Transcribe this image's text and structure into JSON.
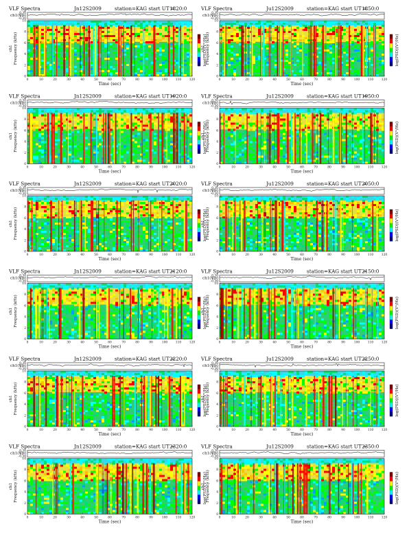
{
  "figure": {
    "columns": 2,
    "rows": 6,
    "header_prefix": "VLF  Spectra",
    "station_text": "station=KAG  start  UT =",
    "dates": {
      "left": "Jn12S2009",
      "right": "Ju12S2009"
    },
    "labels": {
      "ch1_volts": "ch1(V)",
      "ylabel_top": "ch1",
      "ylabel_bottom": "Frequency  (kHz)",
      "xlabel": "Time  (sec)",
      "colorbar": "log(PSD)(V²/Hz)"
    }
  },
  "chart_data": [
    {
      "type": "heatmap",
      "panel": 1,
      "title": "VLF  Spectra",
      "date": "Jn12S2009",
      "start_ut": "1820:0",
      "ch1": {
        "ylim": [
          -0.3,
          0.3
        ],
        "yticks": [
          "0.30",
          "0.00",
          "-0.30"
        ]
      },
      "x": {
        "label": "Time  (sec)",
        "range": [
          0,
          120
        ],
        "ticks": [
          0,
          10,
          20,
          30,
          40,
          50,
          60,
          70,
          80,
          90,
          100,
          110,
          120
        ]
      },
      "y": {
        "label": "Frequency  (kHz)",
        "range": [
          0,
          10
        ],
        "ticks": [
          0,
          2,
          4,
          6,
          8,
          10
        ]
      },
      "colorbar": {
        "label": "log(PSD)(V²/Hz)",
        "colors": [
          "#000080",
          "#0000ff",
          "#00ffff",
          "#00ff00",
          "#ffff00",
          "#ff0000",
          "#800000"
        ]
      }
    },
    {
      "type": "heatmap",
      "panel": 2,
      "title": "VLF  Spectra",
      "date": "Ju12S2009",
      "start_ut": "1850:0",
      "ch1": {
        "ylim": [
          -0.3,
          0.3
        ],
        "yticks": [
          "0.30",
          "0.00",
          "-0.30"
        ]
      },
      "x": {
        "label": "Time  (sec)",
        "range": [
          0,
          120
        ],
        "ticks": [
          0,
          10,
          20,
          30,
          40,
          50,
          60,
          70,
          80,
          90,
          100,
          110,
          120
        ]
      },
      "y": {
        "label": "Frequency  (kHz)",
        "range": [
          0,
          10
        ],
        "ticks": [
          0,
          2,
          4,
          6,
          8,
          10
        ]
      },
      "colorbar": {
        "label": "log(PSD)(V²/Hz)",
        "colors": [
          "#000080",
          "#0000ff",
          "#00ffff",
          "#00ff00",
          "#ffff00",
          "#ff0000",
          "#800000"
        ]
      }
    },
    {
      "type": "heatmap",
      "panel": 3,
      "title": "VLF  Spectra",
      "date": "Jn12S2009",
      "start_ut": "1920:0",
      "ch1": {
        "ylim": [
          -0.3,
          0.3
        ],
        "yticks": [
          "0.30",
          "0.00",
          "-0.30"
        ]
      },
      "x": {
        "label": "Time  (sec)",
        "range": [
          0,
          120
        ],
        "ticks": [
          0,
          10,
          20,
          30,
          40,
          50,
          60,
          70,
          80,
          90,
          100,
          110,
          120
        ]
      },
      "y": {
        "label": "Frequency  (kHz)",
        "range": [
          0,
          10
        ],
        "ticks": [
          0,
          2,
          4,
          6,
          8,
          10
        ]
      },
      "colorbar": {
        "label": "log(PSD)(V²/Hz)",
        "colors": [
          "#000080",
          "#0000ff",
          "#00ffff",
          "#00ff00",
          "#ffff00",
          "#ff0000",
          "#800000"
        ]
      }
    },
    {
      "type": "heatmap",
      "panel": 4,
      "title": "VLF  Spectra",
      "date": "Ju12S2009",
      "start_ut": "1950:0",
      "ch1": {
        "ylim": [
          -0.3,
          0.3
        ],
        "yticks": [
          "0.30",
          "0.00",
          "-0.30"
        ]
      },
      "x": {
        "label": "Time  (sec)",
        "range": [
          0,
          120
        ],
        "ticks": [
          0,
          10,
          20,
          30,
          40,
          50,
          60,
          70,
          80,
          90,
          100,
          110,
          120
        ]
      },
      "y": {
        "label": "Frequency  (kHz)",
        "range": [
          0,
          10
        ],
        "ticks": [
          0,
          2,
          4,
          6,
          8,
          10
        ]
      },
      "colorbar": {
        "label": "log(PSD)(V²/Hz)",
        "colors": [
          "#000080",
          "#0000ff",
          "#00ffff",
          "#00ff00",
          "#ffff00",
          "#ff0000",
          "#800000"
        ]
      }
    },
    {
      "type": "heatmap",
      "panel": 5,
      "title": "VLF  Spectra",
      "date": "Jn12S2009",
      "start_ut": "2020:0",
      "ch1": {
        "ylim": [
          -0.3,
          0.3
        ],
        "yticks": [
          "0.30",
          "0.00",
          "-0.30"
        ]
      },
      "x": {
        "label": "Time  (sec)",
        "range": [
          0,
          120
        ],
        "ticks": [
          0,
          10,
          20,
          30,
          40,
          50,
          60,
          70,
          80,
          90,
          100,
          110,
          120
        ]
      },
      "y": {
        "label": "Frequency  (kHz)",
        "range": [
          0,
          10
        ],
        "ticks": [
          0,
          2,
          4,
          6,
          8,
          10
        ]
      },
      "colorbar": {
        "label": "log(PSD)(V²/Hz)",
        "colors": [
          "#000080",
          "#0000ff",
          "#00ffff",
          "#00ff00",
          "#ffff00",
          "#ff0000",
          "#800000"
        ]
      }
    },
    {
      "type": "heatmap",
      "panel": 6,
      "title": "VLF  Spectra",
      "date": "Ju12S2009",
      "start_ut": "2050:0",
      "ch1": {
        "ylim": [
          -0.3,
          0.3
        ],
        "yticks": [
          "0.30",
          "0.00",
          "-0.30"
        ]
      },
      "x": {
        "label": "Time  (sec)",
        "range": [
          0,
          120
        ],
        "ticks": [
          0,
          10,
          20,
          30,
          40,
          50,
          60,
          70,
          80,
          90,
          100,
          110,
          120
        ]
      },
      "y": {
        "label": "Frequency  (kHz)",
        "range": [
          0,
          10
        ],
        "ticks": [
          0,
          2,
          4,
          6,
          8,
          10
        ]
      },
      "colorbar": {
        "label": "log(PSD)(V²/Hz)",
        "colors": [
          "#000080",
          "#0000ff",
          "#00ffff",
          "#00ff00",
          "#ffff00",
          "#ff0000",
          "#800000"
        ]
      }
    },
    {
      "type": "heatmap",
      "panel": 7,
      "title": "VLF  Spectra",
      "date": "Jn12S2009",
      "start_ut": "2120:0",
      "ch1": {
        "ylim": [
          -0.3,
          0.3
        ],
        "yticks": [
          "0.30",
          "0.00",
          "-0.30"
        ]
      },
      "x": {
        "label": "Time  (sec)",
        "range": [
          0,
          120
        ],
        "ticks": [
          0,
          10,
          20,
          30,
          40,
          50,
          60,
          70,
          80,
          90,
          100,
          110,
          120
        ]
      },
      "y": {
        "label": "Frequency  (kHz)",
        "range": [
          0,
          10
        ],
        "ticks": [
          0,
          2,
          4,
          6,
          8,
          10
        ]
      },
      "colorbar": {
        "label": "log(PSD)(V²/Hz)",
        "colors": [
          "#000080",
          "#0000ff",
          "#00ffff",
          "#00ff00",
          "#ffff00",
          "#ff0000",
          "#800000"
        ]
      }
    },
    {
      "type": "heatmap",
      "panel": 8,
      "title": "VLF  Spectra",
      "date": "Ju12S2009",
      "start_ut": "2150:0",
      "ch1": {
        "ylim": [
          -0.3,
          0.3
        ],
        "yticks": [
          "0.30",
          "0.00",
          "-0.30"
        ]
      },
      "x": {
        "label": "Time  (sec)",
        "range": [
          0,
          120
        ],
        "ticks": [
          0,
          10,
          20,
          30,
          40,
          50,
          60,
          70,
          80,
          90,
          100,
          110,
          120
        ]
      },
      "y": {
        "label": "Frequency  (kHz)",
        "range": [
          0,
          10
        ],
        "ticks": [
          0,
          2,
          4,
          6,
          8,
          10
        ]
      },
      "colorbar": {
        "label": "log(PSD)(V²/Hz)",
        "colors": [
          "#000080",
          "#0000ff",
          "#00ffff",
          "#00ff00",
          "#ffff00",
          "#ff0000",
          "#800000"
        ]
      }
    },
    {
      "type": "heatmap",
      "panel": 9,
      "title": "VLF  Spectra",
      "date": "Jn12S2009",
      "start_ut": "2220:0",
      "ch1": {
        "ylim": [
          -0.3,
          0.3
        ],
        "yticks": [
          "0.30",
          "0.00",
          "-0.30"
        ]
      },
      "x": {
        "label": "Time  (sec)",
        "range": [
          0,
          120
        ],
        "ticks": [
          0,
          10,
          20,
          30,
          40,
          50,
          60,
          70,
          80,
          90,
          100,
          110,
          120
        ]
      },
      "y": {
        "label": "Frequency  (kHz)",
        "range": [
          0,
          10
        ],
        "ticks": [
          0,
          2,
          4,
          6,
          8,
          10
        ]
      },
      "colorbar": {
        "label": "log(PSD)(V²/Hz)",
        "colors": [
          "#000080",
          "#0000ff",
          "#00ffff",
          "#00ff00",
          "#ffff00",
          "#ff0000",
          "#800000"
        ]
      }
    },
    {
      "type": "heatmap",
      "panel": 10,
      "title": "VLF  Spectra",
      "date": "Ju12S2009",
      "start_ut": "2250:0",
      "ch1": {
        "ylim": [
          -0.3,
          0.3
        ],
        "yticks": [
          "0.30",
          "0.00",
          "-0.30"
        ]
      },
      "x": {
        "label": "Time  (sec)",
        "range": [
          0,
          120
        ],
        "ticks": [
          0,
          10,
          20,
          30,
          40,
          50,
          60,
          70,
          80,
          90,
          100,
          110,
          120
        ]
      },
      "y": {
        "label": "Frequency  (kHz)",
        "range": [
          0,
          10
        ],
        "ticks": [
          0,
          2,
          4,
          6,
          8,
          10
        ]
      },
      "colorbar": {
        "label": "log(PSD)(V²/Hz)",
        "colors": [
          "#000080",
          "#0000ff",
          "#00ffff",
          "#00ff00",
          "#ffff00",
          "#ff0000",
          "#800000"
        ]
      }
    },
    {
      "type": "heatmap",
      "panel": 11,
      "title": "VLF  Spectra",
      "date": "Jn12S2009",
      "start_ut": "2320:0",
      "ch1": {
        "ylim": [
          -0.3,
          0.3
        ],
        "yticks": [
          "0.30",
          "0.00",
          "-0.30"
        ]
      },
      "x": {
        "label": "Time  (sec)",
        "range": [
          0,
          120
        ],
        "ticks": [
          0,
          10,
          20,
          30,
          40,
          50,
          60,
          70,
          80,
          90,
          100,
          110,
          120
        ]
      },
      "y": {
        "label": "Frequency  (kHz)",
        "range": [
          0,
          10
        ],
        "ticks": [
          0,
          2,
          4,
          6,
          8,
          10
        ]
      },
      "colorbar": {
        "label": "log(PSD)(V²/Hz)",
        "colors": [
          "#000080",
          "#0000ff",
          "#00ffff",
          "#00ff00",
          "#ffff00",
          "#ff0000",
          "#800000"
        ]
      }
    },
    {
      "type": "heatmap",
      "panel": 12,
      "title": "VLF  Spectra",
      "date": "Ju12S2009",
      "start_ut": "2350:0",
      "ch1": {
        "ylim": [
          -0.3,
          0.3
        ],
        "yticks": [
          "0.30",
          "0.00",
          "-0.30"
        ]
      },
      "x": {
        "label": "Time  (sec)",
        "range": [
          0,
          120
        ],
        "ticks": [
          0,
          10,
          20,
          30,
          40,
          50,
          60,
          70,
          80,
          90,
          100,
          110,
          120
        ]
      },
      "y": {
        "label": "Frequency  (kHz)",
        "range": [
          0,
          10
        ],
        "ticks": [
          0,
          2,
          4,
          6,
          8,
          10
        ]
      },
      "colorbar": {
        "label": "log(PSD)(V²/Hz)",
        "colors": [
          "#000080",
          "#0000ff",
          "#00ffff",
          "#00ff00",
          "#ffff00",
          "#ff0000",
          "#800000"
        ]
      }
    }
  ]
}
